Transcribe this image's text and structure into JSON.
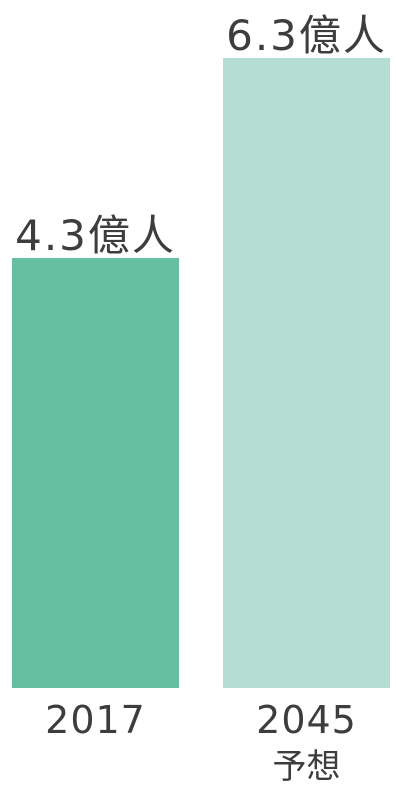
{
  "chart_data": {
    "type": "bar",
    "title": "",
    "xlabel": "",
    "ylabel": "",
    "ylim": [
      0,
      6.3
    ],
    "grid": false,
    "categories": [
      "2017",
      "2045"
    ],
    "category_sublabels": [
      "",
      "予想"
    ],
    "values": [
      4.3,
      6.3
    ],
    "value_labels": [
      "4.3億人",
      "6.3億人"
    ],
    "colors": [
      "#66bfa0",
      "#b3ded1"
    ]
  }
}
